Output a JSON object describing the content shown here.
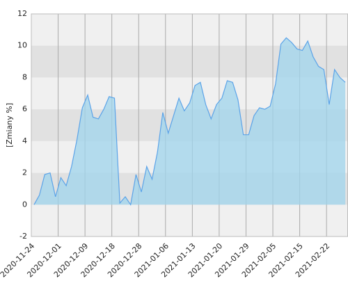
{
  "chart_data": {
    "type": "area",
    "ylabel": "[Zmiany %]",
    "categories": [
      "2020-11-24",
      null,
      null,
      null,
      null,
      "2020-12-01",
      null,
      null,
      null,
      null,
      "2020-12-09",
      null,
      null,
      null,
      null,
      "2020-12-18",
      null,
      null,
      null,
      null,
      "2020-12-28",
      null,
      null,
      null,
      null,
      "2021-01-06",
      null,
      null,
      null,
      null,
      "2021-01-13",
      null,
      null,
      null,
      null,
      "2021-01-20",
      null,
      null,
      null,
      null,
      "2021-01-29",
      null,
      null,
      null,
      null,
      "2021-02-05",
      null,
      null,
      null,
      null,
      "2021-02-15",
      null,
      null,
      null,
      null,
      "2021-02-22",
      null,
      null,
      null
    ],
    "values": [
      0.0,
      0.6,
      1.9,
      2.0,
      0.5,
      1.7,
      1.2,
      2.4,
      4.1,
      6.1,
      6.9,
      5.5,
      5.4,
      6.0,
      6.8,
      6.7,
      0.1,
      0.5,
      0.0,
      1.9,
      0.8,
      2.4,
      1.6,
      3.3,
      5.8,
      4.5,
      5.6,
      6.7,
      5.9,
      6.4,
      7.5,
      7.7,
      6.3,
      5.4,
      6.3,
      6.7,
      7.8,
      7.7,
      6.6,
      4.4,
      4.4,
      5.6,
      6.1,
      6.0,
      6.2,
      7.6,
      10.1,
      10.5,
      10.2,
      9.8,
      9.7,
      10.3,
      9.3,
      8.7,
      8.5,
      6.3,
      8.5,
      8.0,
      7.7
    ],
    "color": "#5ba3e8",
    "ylim": [
      -2,
      12
    ],
    "yticks": [
      -2,
      0,
      2,
      4,
      6,
      8,
      10,
      12
    ],
    "grid": true
  }
}
